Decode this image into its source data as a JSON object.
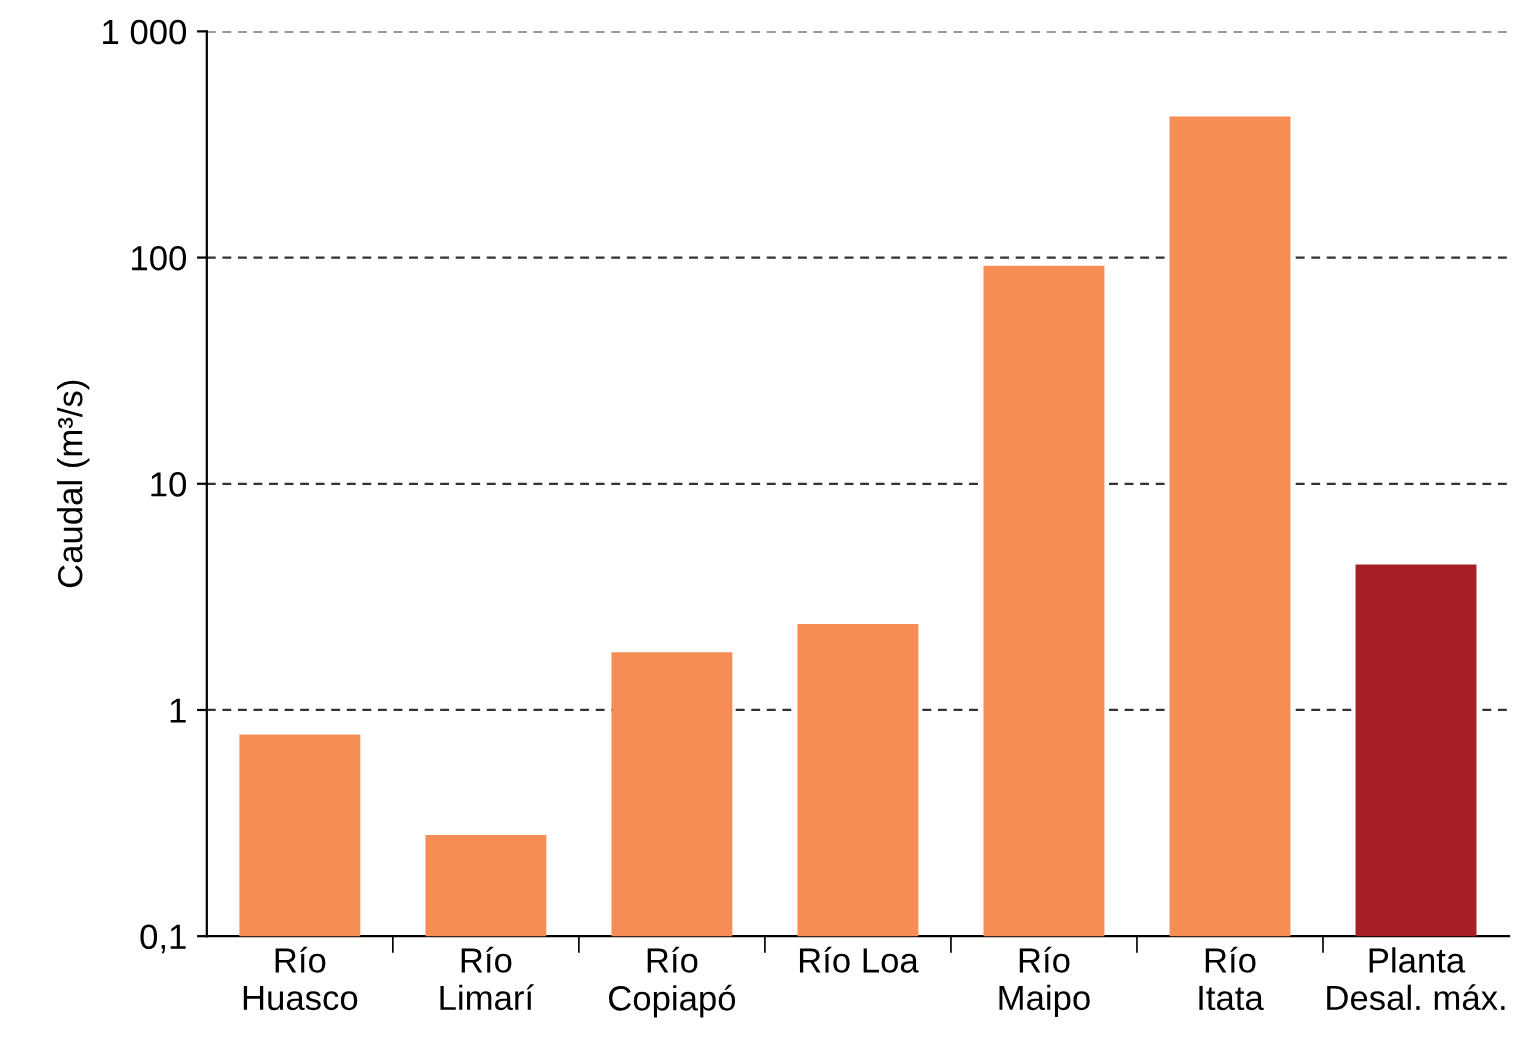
{
  "chart_data": {
    "type": "bar",
    "ylabel": "Caudal (m³/s)",
    "categories": [
      "Río\nHuasco",
      "Río\nLimarí",
      "Río\nCopiapó",
      "Río Loa",
      "Río\nMaipo",
      "Río\nItata",
      "Planta\nDesal. máx."
    ],
    "values": [
      0.78,
      0.28,
      1.8,
      2.4,
      92,
      420,
      4.4
    ],
    "colors": [
      "#f68d55",
      "#f68d55",
      "#f68d55",
      "#f68d55",
      "#f68d55",
      "#f68d55",
      "#a51f24"
    ],
    "log": "y",
    "ylim": [
      0.1,
      1000
    ],
    "yticks": [
      {
        "value": 0.1,
        "label": "0,1"
      },
      1,
      10,
      100,
      {
        "value": 1000,
        "label": "1 000"
      }
    ],
    "grid": "y"
  }
}
